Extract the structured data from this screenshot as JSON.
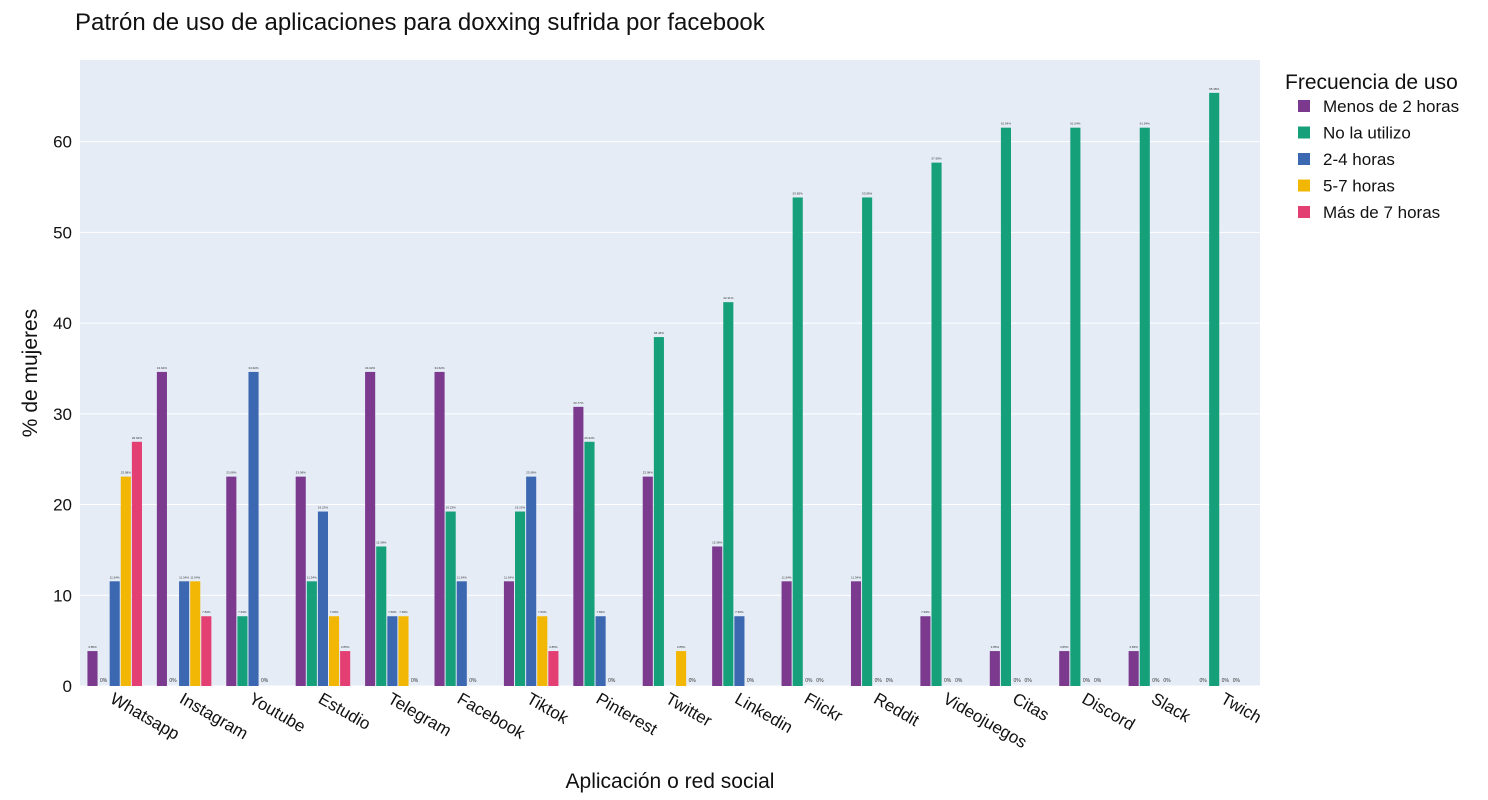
{
  "chart_data": {
    "type": "bar",
    "title": "Patrón de uso de aplicaciones para doxxing sufrida por facebook",
    "xlabel": "Aplicación o red social",
    "ylabel": "% de mujeres",
    "ylim": [
      0,
      69
    ],
    "yticks": [
      0,
      10,
      20,
      30,
      40,
      50,
      60
    ],
    "grid": true,
    "legend_title": "Frecuencia de uso",
    "legend_position": "top-right",
    "categories": [
      "Whatsapp",
      "Instagram",
      "Youtube",
      "Estudio",
      "Telegram",
      "Facebook",
      "Tiktok",
      "Pinterest",
      "Twitter",
      "Linkedin",
      "Flickr",
      "Reddit",
      "Videojuegos",
      "Citas",
      "Discord",
      "Slack",
      "Twich"
    ],
    "series": [
      {
        "name": "Menos de 2 horas",
        "color": "#7b3a8e",
        "values": [
          3.85,
          34.62,
          23.08,
          23.08,
          34.62,
          34.62,
          11.54,
          30.77,
          23.08,
          15.38,
          11.54,
          11.54,
          7.69,
          3.85,
          3.85,
          3.85,
          0
        ],
        "labels": [
          "3.85%",
          "34.62%",
          "23.08%",
          "23.08%",
          "34.62%",
          "34.62%",
          "11.54%",
          "30.77%",
          "23.08%",
          "15.38%",
          "11.54%",
          "11.54%",
          "7.69%",
          "3.85%",
          "3.85%",
          "3.85%",
          "0%"
        ]
      },
      {
        "name": "No la utilizo",
        "color": "#15a07a",
        "values": [
          0,
          0,
          7.69,
          11.54,
          15.38,
          19.23,
          19.23,
          26.92,
          38.46,
          42.31,
          53.85,
          53.85,
          57.69,
          61.54,
          61.54,
          61.54,
          65.38
        ],
        "labels": [
          "0%",
          "0%",
          "7.69%",
          "11.54%",
          "15.38%",
          "19.23%",
          "19.23%",
          "26.92%",
          "38.46%",
          "42.31%",
          "53.85%",
          "53.85%",
          "57.69%",
          "61.54%",
          "61.54%",
          "61.54%",
          "65.38%"
        ]
      },
      {
        "name": "2-4 horas",
        "color": "#3c68b2",
        "values": [
          11.54,
          11.54,
          34.62,
          19.23,
          7.69,
          11.54,
          23.08,
          7.69,
          0,
          7.69,
          0,
          0,
          0,
          0,
          0,
          0,
          0
        ],
        "labels": [
          "11.54%",
          "11.54%",
          "34.62%",
          "19.23%",
          "7.69%",
          "11.54%",
          "23.08%",
          "7.69%",
          "",
          "7.69%",
          "0%",
          "0%",
          "0%",
          "0%",
          "0%",
          "0%",
          "0%"
        ]
      },
      {
        "name": "5-7 horas",
        "color": "#f2b705",
        "values": [
          23.08,
          11.54,
          0,
          7.69,
          7.69,
          0,
          7.69,
          0,
          3.85,
          0,
          0,
          0,
          0,
          0,
          0,
          0,
          0
        ],
        "labels": [
          "23.08%",
          "11.54%",
          "0%",
          "7.69%",
          "7.69%",
          "0%",
          "7.69%",
          "0%",
          "3.85%",
          "0%",
          "0%",
          "0%",
          "0%",
          "0%",
          "0%",
          "0%",
          "0%"
        ]
      },
      {
        "name": "Más de 7 horas",
        "color": "#e43f73",
        "values": [
          26.92,
          7.69,
          0,
          3.85,
          0,
          0,
          3.85,
          0,
          0,
          0,
          0,
          0,
          0,
          0,
          0,
          0,
          0
        ],
        "labels": [
          "26.92%",
          "7.69%",
          "",
          "3.85%",
          "0%",
          "",
          "3.85%",
          "",
          "0%",
          "",
          "",
          "",
          "",
          "",
          "",
          "",
          ""
        ]
      }
    ]
  }
}
